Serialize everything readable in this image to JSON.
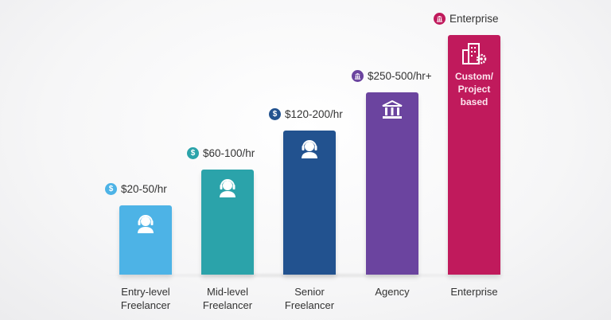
{
  "chart_data": {
    "type": "bar",
    "categories": [
      "Entry-level Freelancer",
      "Mid-level Freelancer",
      "Senior Freelancer",
      "Agency",
      "Enterprise"
    ],
    "category_lines": [
      [
        "Entry-level",
        "Freelancer"
      ],
      [
        "Mid-level",
        "Freelancer"
      ],
      [
        "Senior",
        "Freelancer"
      ],
      [
        "Agency"
      ],
      [
        "Enterprise"
      ]
    ],
    "price_labels": [
      "$20-50/hr",
      "$60-100/hr",
      "$120-200/hr",
      "$250-500/hr+",
      "Enterprise"
    ],
    "relative_levels": [
      0.29,
      0.44,
      0.6,
      0.76,
      1.0
    ],
    "bar_inner_text": [
      "",
      "",
      "",
      "",
      "Custom/ Project based"
    ],
    "icons": [
      "headset-person-icon",
      "headset-person-icon",
      "headset-person-icon",
      "bank-building-icon",
      "office-building-gear-icon"
    ],
    "badge_icons": [
      "dollar-icon",
      "dollar-icon",
      "dollar-icon",
      "bank-icon",
      "bank-icon"
    ],
    "badge_glyph": "$",
    "colors": [
      "#4db3e6",
      "#2ba3aa",
      "#22528f",
      "#6b449f",
      "#c01a5c"
    ],
    "grid": false,
    "legend": "none"
  }
}
